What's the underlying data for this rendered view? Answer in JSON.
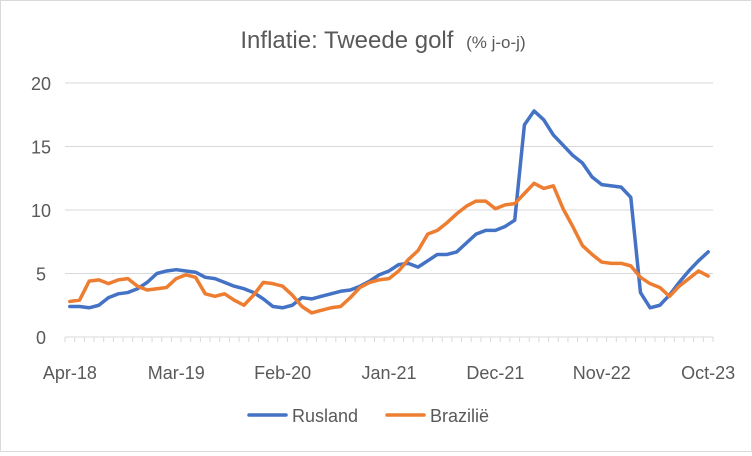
{
  "chart_data": {
    "type": "line",
    "title": "Inflatie: Tweede golf",
    "title_unit": "(% j-o-j)",
    "xlabel": "",
    "ylabel": "",
    "ylim": [
      0,
      20
    ],
    "yticks": [
      "0",
      "5",
      "10",
      "15",
      "20"
    ],
    "xticks": [
      "Apr-18",
      "Mar-19",
      "Feb-20",
      "Jan-21",
      "Dec-21",
      "Nov-22",
      "Oct-23"
    ],
    "grid": true,
    "legend_position": "bottom",
    "x": [
      "Apr-18",
      "May-18",
      "Jun-18",
      "Jul-18",
      "Aug-18",
      "Sep-18",
      "Oct-18",
      "Nov-18",
      "Dec-18",
      "Jan-19",
      "Feb-19",
      "Mar-19",
      "Apr-19",
      "May-19",
      "Jun-19",
      "Jul-19",
      "Aug-19",
      "Sep-19",
      "Oct-19",
      "Nov-19",
      "Dec-19",
      "Jan-20",
      "Feb-20",
      "Mar-20",
      "Apr-20",
      "May-20",
      "Jun-20",
      "Jul-20",
      "Aug-20",
      "Sep-20",
      "Oct-20",
      "Nov-20",
      "Dec-20",
      "Jan-21",
      "Feb-21",
      "Mar-21",
      "Apr-21",
      "May-21",
      "Jun-21",
      "Jul-21",
      "Aug-21",
      "Sep-21",
      "Oct-21",
      "Nov-21",
      "Dec-21",
      "Jan-22",
      "Feb-22",
      "Mar-22",
      "Apr-22",
      "May-22",
      "Jun-22",
      "Jul-22",
      "Aug-22",
      "Sep-22",
      "Oct-22",
      "Nov-22",
      "Dec-22",
      "Jan-23",
      "Feb-23",
      "Mar-23",
      "Apr-23",
      "May-23",
      "Jun-23",
      "Jul-23",
      "Aug-23",
      "Sep-23",
      "Oct-23"
    ],
    "series": [
      {
        "name": "Rusland",
        "color": "#4472C4",
        "values": [
          2.4,
          2.4,
          2.3,
          2.5,
          3.1,
          3.4,
          3.5,
          3.8,
          4.3,
          5.0,
          5.2,
          5.3,
          5.2,
          5.1,
          4.7,
          4.6,
          4.3,
          4.0,
          3.8,
          3.5,
          3.0,
          2.4,
          2.3,
          2.5,
          3.1,
          3.0,
          3.2,
          3.4,
          3.6,
          3.7,
          4.0,
          4.4,
          4.9,
          5.2,
          5.7,
          5.8,
          5.5,
          6.0,
          6.5,
          6.5,
          6.7,
          7.4,
          8.1,
          8.4,
          8.4,
          8.7,
          9.2,
          16.7,
          17.8,
          17.1,
          15.9,
          15.1,
          14.3,
          13.7,
          12.6,
          12.0,
          11.9,
          11.8,
          11.0,
          3.5,
          2.3,
          2.5,
          3.3,
          4.3,
          5.2,
          6.0,
          6.7
        ]
      },
      {
        "name": "Brazilië",
        "color": "#ED7D31",
        "values": [
          2.8,
          2.9,
          4.4,
          4.5,
          4.2,
          4.5,
          4.6,
          4.0,
          3.7,
          3.8,
          3.9,
          4.6,
          4.9,
          4.7,
          3.4,
          3.2,
          3.4,
          2.9,
          2.5,
          3.3,
          4.3,
          4.2,
          4.0,
          3.3,
          2.4,
          1.9,
          2.1,
          2.3,
          2.4,
          3.1,
          3.9,
          4.3,
          4.5,
          4.6,
          5.2,
          6.1,
          6.8,
          8.1,
          8.4,
          9.0,
          9.7,
          10.3,
          10.7,
          10.7,
          10.1,
          10.4,
          10.5,
          11.3,
          12.1,
          11.7,
          11.9,
          10.1,
          8.7,
          7.2,
          6.5,
          5.9,
          5.8,
          5.8,
          5.6,
          4.7,
          4.2,
          3.9,
          3.2,
          4.0,
          4.6,
          5.2,
          4.8
        ]
      }
    ]
  }
}
